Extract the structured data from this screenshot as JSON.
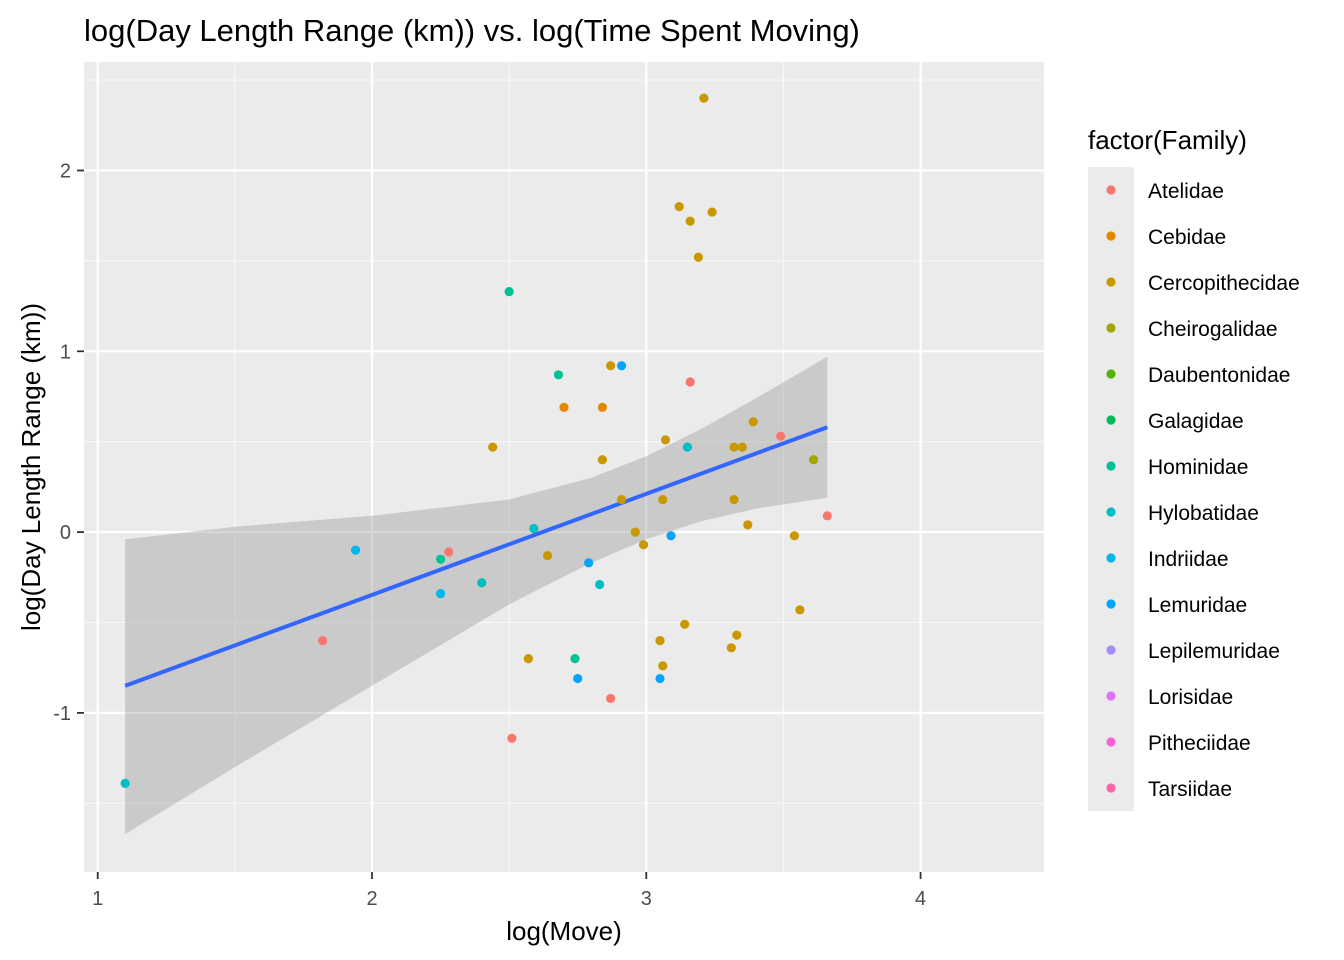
{
  "chart_data": {
    "type": "scatter",
    "title": "log(Day Length Range (km)) vs. log(Time Spent Moving)",
    "xlabel": "log(Move)",
    "ylabel": "log(Day Length Range (km))",
    "xlim": [
      0.95,
      4.45
    ],
    "ylim": [
      -1.88,
      2.6
    ],
    "x_ticks": [
      1,
      2,
      3,
      4
    ],
    "y_ticks": [
      -1,
      0,
      1,
      2
    ],
    "grid": true,
    "legend": {
      "title": "factor(Family)",
      "position": "right",
      "entries": [
        {
          "name": "Atelidae",
          "color": "#F8766D"
        },
        {
          "name": "Cebidae",
          "color": "#E58700"
        },
        {
          "name": "Cercopithecidae",
          "color": "#C99800"
        },
        {
          "name": "Cheirogalidae",
          "color": "#A3A500"
        },
        {
          "name": "Daubentonidae",
          "color": "#53B400"
        },
        {
          "name": "Galagidae",
          "color": "#00BC56"
        },
        {
          "name": "Hominidae",
          "color": "#00C094"
        },
        {
          "name": "Hylobatidae",
          "color": "#00BFC4"
        },
        {
          "name": "Indriidae",
          "color": "#00B6EB"
        },
        {
          "name": "Lemuridae",
          "color": "#06A4FF"
        },
        {
          "name": "Lepilemuridae",
          "color": "#A58AFF"
        },
        {
          "name": "Lorisidae",
          "color": "#DF70F8"
        },
        {
          "name": "Pitheciidae",
          "color": "#FB61D7"
        },
        {
          "name": "Tarsiidae",
          "color": "#FF66A8"
        }
      ]
    },
    "series": [
      {
        "name": "Atelidae",
        "color": "#F8766D",
        "points": [
          [
            1.82,
            -0.6
          ],
          [
            2.28,
            -0.11
          ],
          [
            2.51,
            -1.14
          ],
          [
            2.87,
            -0.92
          ],
          [
            3.16,
            0.83
          ],
          [
            3.49,
            0.53
          ],
          [
            3.66,
            0.09
          ]
        ]
      },
      {
        "name": "Cebidae",
        "color": "#E58700",
        "points": [
          [
            2.7,
            0.69
          ],
          [
            2.84,
            0.69
          ]
        ]
      },
      {
        "name": "Cercopithecidae",
        "color": "#C99800",
        "points": [
          [
            2.44,
            0.47
          ],
          [
            2.57,
            -0.7
          ],
          [
            2.64,
            -0.13
          ],
          [
            2.84,
            0.4
          ],
          [
            2.87,
            0.92
          ],
          [
            2.91,
            0.18
          ],
          [
            2.96,
            0.0
          ],
          [
            2.99,
            -0.07
          ],
          [
            3.05,
            -0.6
          ],
          [
            3.06,
            0.18
          ],
          [
            3.06,
            -0.74
          ],
          [
            3.07,
            0.51
          ],
          [
            3.12,
            1.8
          ],
          [
            3.14,
            -0.51
          ],
          [
            3.16,
            1.72
          ],
          [
            3.19,
            1.52
          ],
          [
            3.21,
            2.4
          ],
          [
            3.24,
            1.77
          ],
          [
            3.31,
            -0.64
          ],
          [
            3.32,
            0.18
          ],
          [
            3.32,
            0.47
          ],
          [
            3.33,
            -0.57
          ],
          [
            3.35,
            0.47
          ],
          [
            3.37,
            0.04
          ],
          [
            3.39,
            0.61
          ],
          [
            3.54,
            -0.02
          ],
          [
            3.56,
            -0.43
          ]
        ]
      },
      {
        "name": "Cheirogalidae",
        "color": "#A3A500",
        "points": [
          [
            3.61,
            0.4
          ]
        ]
      },
      {
        "name": "Hominidae",
        "color": "#00C094",
        "points": [
          [
            2.25,
            -0.15
          ],
          [
            2.5,
            1.33
          ],
          [
            2.68,
            0.87
          ],
          [
            2.74,
            -0.7
          ]
        ]
      },
      {
        "name": "Hylobatidae",
        "color": "#00BFC4",
        "points": [
          [
            1.1,
            -1.39
          ],
          [
            2.4,
            -0.28
          ],
          [
            2.59,
            0.02
          ],
          [
            2.83,
            -0.29
          ],
          [
            3.15,
            0.47
          ]
        ]
      },
      {
        "name": "Indriidae",
        "color": "#00B6EB",
        "points": [
          [
            1.94,
            -0.1
          ],
          [
            2.25,
            -0.34
          ]
        ]
      },
      {
        "name": "Lemuridae",
        "color": "#06A4FF",
        "points": [
          [
            2.75,
            -0.81
          ],
          [
            2.79,
            -0.17
          ],
          [
            2.91,
            0.92
          ],
          [
            3.05,
            -0.81
          ],
          [
            3.09,
            -0.02
          ]
        ]
      }
    ],
    "trend_line": {
      "x": [
        1.1,
        3.66
      ],
      "y": [
        -0.85,
        0.58
      ],
      "color": "#3366FF"
    },
    "confidence_band": {
      "x": [
        1.1,
        1.5,
        2.0,
        2.5,
        2.8,
        3.0,
        3.2,
        3.4,
        3.66
      ],
      "lower": [
        -1.67,
        -1.3,
        -0.85,
        -0.4,
        -0.17,
        -0.04,
        0.06,
        0.13,
        0.19
      ],
      "upper": [
        -0.04,
        0.03,
        0.09,
        0.18,
        0.3,
        0.42,
        0.57,
        0.74,
        0.97
      ],
      "color": "#999999"
    }
  }
}
